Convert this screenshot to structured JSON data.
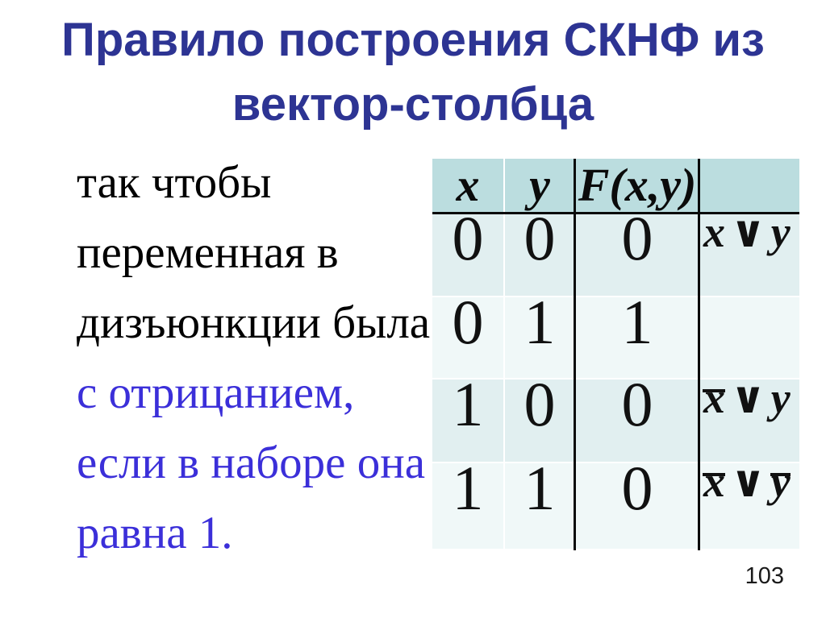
{
  "slide": {
    "title": {
      "line1": "Правило построения СКНФ из",
      "line2": "вектор-столбца"
    },
    "body": {
      "black_lines": [
        "так чтобы",
        "переменная в",
        "дизъюнкции была"
      ],
      "blue_lines": [
        "с отрицанием,",
        "если в наборе она",
        "равна 1."
      ]
    },
    "page_number": "103",
    "colors": {
      "title_blue": "#2D3493",
      "body_blue": "#3B2FD9",
      "table_header_fill": "#BBDDDF",
      "table_row_odd": "#E1EFF0",
      "table_row_even": "#F0F8F8",
      "rule_line": "#0a0a0a"
    }
  },
  "table": {
    "headers": [
      {
        "label": "x"
      },
      {
        "label": "y"
      },
      {
        "label": "F(x,y)"
      },
      {
        "label": ""
      }
    ],
    "rows": [
      {
        "x": "0",
        "y": "0",
        "f": "0",
        "formula": [
          {
            "t": "x",
            "bar": false
          },
          {
            "t": "∨",
            "op": true
          },
          {
            "t": "y",
            "bar": false
          }
        ]
      },
      {
        "x": "0",
        "y": "1",
        "f": "1",
        "formula": []
      },
      {
        "x": "1",
        "y": "0",
        "f": "0",
        "formula": [
          {
            "t": "x",
            "bar": true
          },
          {
            "t": "∨",
            "op": true
          },
          {
            "t": "y",
            "bar": false
          }
        ]
      },
      {
        "x": "1",
        "y": "1",
        "f": "0",
        "formula": [
          {
            "t": "x",
            "bar": true
          },
          {
            "t": "∨",
            "op": true
          },
          {
            "t": "y",
            "bar": true
          }
        ]
      }
    ]
  }
}
